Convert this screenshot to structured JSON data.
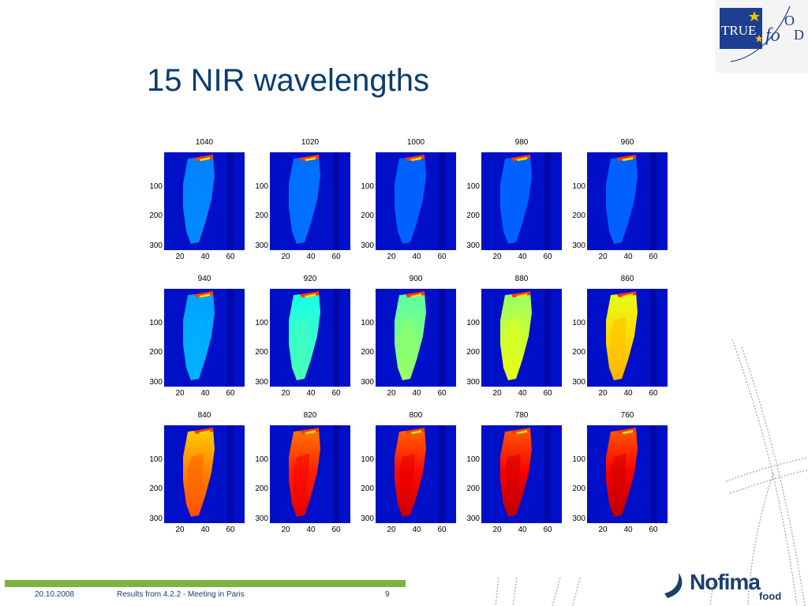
{
  "slide": {
    "title": "15 NIR wavelengths",
    "logo_text": "TRUEfOOD",
    "footer_date": "20.10.2008",
    "footer_text": "Results from 4.2.2 - Meeting in Paris",
    "page_number": "9",
    "brand_text": "Nofima",
    "brand_sub": "food"
  },
  "figure": {
    "y_ticks": [
      "100",
      "200",
      "300"
    ],
    "x_ticks": [
      "20",
      "40",
      "60"
    ],
    "panels": [
      {
        "label": "1040",
        "intensity": 0.05
      },
      {
        "label": "1020",
        "intensity": 0.02
      },
      {
        "label": "1000",
        "intensity": 0.0
      },
      {
        "label": "980",
        "intensity": 0.0
      },
      {
        "label": "960",
        "intensity": 0.0
      },
      {
        "label": "940",
        "intensity": 0.1
      },
      {
        "label": "920",
        "intensity": 0.28
      },
      {
        "label": "900",
        "intensity": 0.38
      },
      {
        "label": "880",
        "intensity": 0.48
      },
      {
        "label": "860",
        "intensity": 0.6
      },
      {
        "label": "840",
        "intensity": 0.72
      },
      {
        "label": "820",
        "intensity": 0.85
      },
      {
        "label": "800",
        "intensity": 0.88
      },
      {
        "label": "780",
        "intensity": 0.9
      },
      {
        "label": "760",
        "intensity": 0.9
      }
    ]
  }
}
